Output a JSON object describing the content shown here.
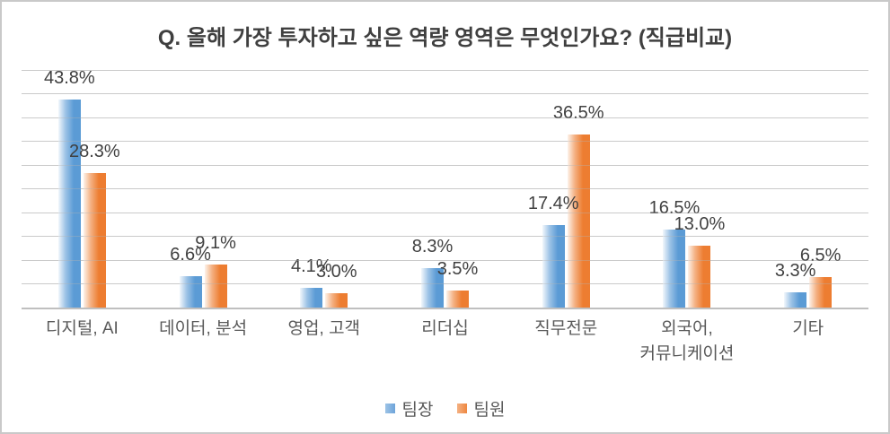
{
  "chart_data": {
    "type": "bar",
    "title": "Q. 올해 가장 투자하고 싶은 역량 영역은 무엇인가요? (직급비교)",
    "categories": [
      "디지털, AI",
      "데이터, 분석",
      "영업, 고객",
      "리더십",
      "직무전문",
      "외국어,\n커뮤니케이션",
      "기타"
    ],
    "series": [
      {
        "name": "팀장",
        "color": "#5b9bd5",
        "values": [
          43.8,
          6.6,
          4.1,
          8.3,
          17.4,
          16.5,
          3.3
        ]
      },
      {
        "name": "팀원",
        "color": "#ed7d31",
        "values": [
          28.3,
          9.1,
          3.0,
          3.5,
          36.5,
          13.0,
          6.5
        ]
      }
    ],
    "data_labels": [
      [
        "43.8%",
        "6.6%",
        "4.1%",
        "8.3%",
        "17.4%",
        "16.5%",
        "3.3%"
      ],
      [
        "28.3%",
        "9.1%",
        "3.0%",
        "3.5%",
        "36.5%",
        "13.0%",
        "6.5%"
      ]
    ],
    "xlabel": "",
    "ylabel": "",
    "ylim": [
      0,
      50
    ],
    "grid_step": 5,
    "grid": true,
    "y_axis_labels_visible": false,
    "legend_position": "bottom",
    "colors": {
      "series_blue": "#5b9bd5",
      "series_orange": "#ed7d31",
      "gridline": "#d9d9d9",
      "axis_line": "#bfbfbf",
      "title_text": "#3f3f3f",
      "value_label_text": "#404040",
      "category_text": "#595959",
      "chart_border": "#c9c9c9"
    }
  }
}
